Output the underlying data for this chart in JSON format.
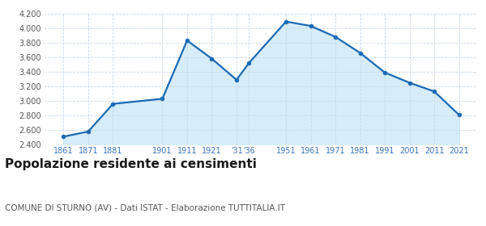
{
  "years": [
    1861,
    1871,
    1881,
    1901,
    1911,
    1921,
    1931,
    1936,
    1951,
    1961,
    1971,
    1981,
    1991,
    2001,
    2011,
    2021
  ],
  "population": [
    2510,
    2580,
    2960,
    3030,
    3830,
    3580,
    3290,
    3520,
    4090,
    4030,
    3880,
    3660,
    3390,
    3250,
    3130,
    2810
  ],
  "ylim": [
    2400,
    4200
  ],
  "yticks": [
    2400,
    2600,
    2800,
    3000,
    3200,
    3400,
    3600,
    3800,
    4000,
    4200
  ],
  "xtick_positions": [
    1861,
    1871,
    1881,
    1901,
    1911,
    1921,
    1931,
    1936,
    1951,
    1961,
    1971,
    1981,
    1991,
    2001,
    2011,
    2021
  ],
  "xtick_labels": [
    "1861",
    "1871",
    "1881",
    "1901",
    "1911",
    "1921",
    "'31",
    "'36",
    "1951",
    "1961",
    "1971",
    "1981",
    "1991",
    "2001",
    "2011",
    "2021"
  ],
  "xlim": [
    1853,
    2028
  ],
  "line_color": "#1a6ab5",
  "fill_color": "#d6ecf8",
  "marker_color": "#1a6ab5",
  "bg_color": "#ffffff",
  "grid_color": "#c8d8e8",
  "title": "Popolazione residente ai censimenti",
  "subtitle": "COMUNE DI STURNO (AV) - Dati ISTAT - Elaborazione TUTTITALIA.IT",
  "title_fontsize": 11,
  "subtitle_fontsize": 7.5,
  "tick_label_color": "#3a72b8"
}
